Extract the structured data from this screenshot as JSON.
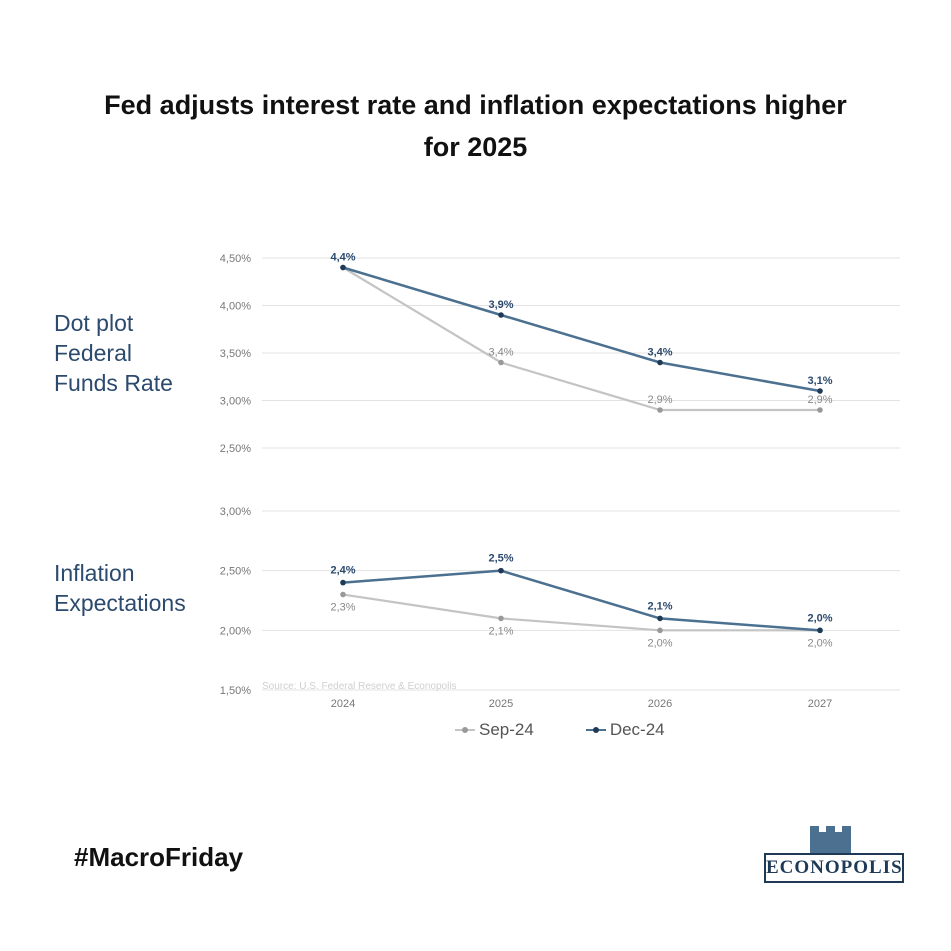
{
  "title_lines": [
    "Fed adjusts interest rate and inflation expectations higher",
    "for 2025"
  ],
  "hashtag": "#MacroFriday",
  "logo_text": "ECONOPOLIS",
  "colors": {
    "sep": "#c4c4c4",
    "dec": "#4b7090",
    "dec_label": "#2b4a6e",
    "sep_label": "#888888",
    "grid": "#e3e3e3",
    "axis_text": "#777777"
  },
  "chart_data": {
    "type": "line",
    "x": [
      "2024",
      "2025",
      "2026",
      "2027"
    ],
    "source": "Source: U.S. Federal Reserve & Econopolis",
    "legend": [
      {
        "key": "sep",
        "name": "Sep-24"
      },
      {
        "key": "dec",
        "name": "Dec-24"
      }
    ],
    "panels": [
      {
        "id": "fed",
        "label_lines": [
          "Dot plot",
          "Federal",
          "Funds Rate"
        ],
        "yticks": [
          {
            "value": 4.5,
            "label": "4,50%"
          },
          {
            "value": 4.0,
            "label": "4,00%"
          },
          {
            "value": 3.5,
            "label": "3,50%"
          },
          {
            "value": 3.0,
            "label": "3,00%"
          },
          {
            "value": 2.5,
            "label": "2,50%"
          }
        ],
        "ylim": [
          2.5,
          4.5
        ],
        "series": [
          {
            "key": "sep",
            "name": "Sep-24",
            "values": [
              4.4,
              3.4,
              2.9,
              2.9
            ],
            "labels": [
              "",
              "3,4%",
              "2,9%",
              "2,9%"
            ]
          },
          {
            "key": "dec",
            "name": "Dec-24",
            "values": [
              4.4,
              3.9,
              3.4,
              3.1
            ],
            "labels": [
              "4,4%",
              "3,9%",
              "3,4%",
              "3,1%"
            ]
          }
        ]
      },
      {
        "id": "infl",
        "label_lines": [
          "Inflation",
          "Expectations"
        ],
        "yticks": [
          {
            "value": 3.0,
            "label": "3,00%"
          },
          {
            "value": 2.5,
            "label": "2,50%"
          },
          {
            "value": 2.0,
            "label": "2,00%"
          },
          {
            "value": 1.5,
            "label": "1,50%"
          }
        ],
        "ylim": [
          1.5,
          3.0
        ],
        "series": [
          {
            "key": "sep",
            "name": "Sep-24",
            "values": [
              2.3,
              2.1,
              2.0,
              2.0
            ],
            "labels": [
              "2,3%",
              "2,1%",
              "2,0%",
              "2,0%"
            ]
          },
          {
            "key": "dec",
            "name": "Dec-24",
            "values": [
              2.4,
              2.5,
              2.1,
              2.0
            ],
            "labels": [
              "2,4%",
              "2,5%",
              "2,1%",
              "2,0%"
            ]
          }
        ]
      }
    ]
  }
}
